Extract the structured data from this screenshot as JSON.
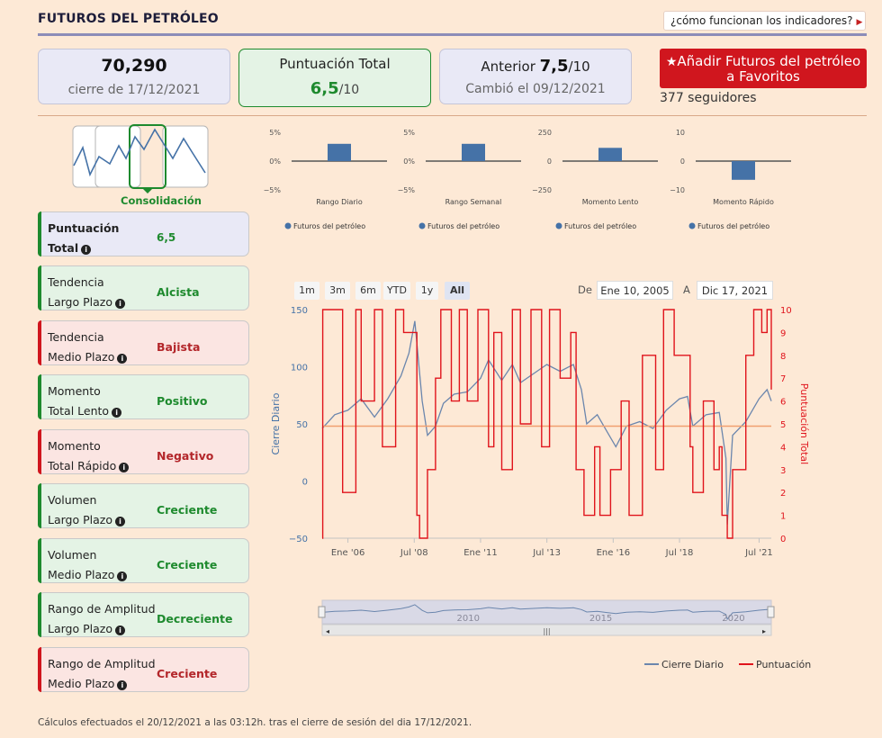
{
  "header": {
    "title": "FUTUROS DEL PETRÓLEO",
    "how_link": "¿cómo funcionan los indicadores?"
  },
  "summary": {
    "price": "70,290",
    "price_date": "cierre de 17/12/2021",
    "total_label": "Puntuación Total",
    "total_score": "6,5",
    "total_suffix": "/10",
    "prev_label": "Anterior ",
    "prev_score": "7,5",
    "prev_suffix": "/10",
    "prev_date": "Cambió el 09/12/2021"
  },
  "favorites": {
    "button_label": "Añadir Futuros del petróleo a Favoritos",
    "followers": "377 seguidores"
  },
  "phase": {
    "label": "Consolidación"
  },
  "panels": [
    {
      "line1": "Puntuación",
      "line2": "Total",
      "value": "6,5",
      "tone": "purple"
    },
    {
      "line1": "Tendencia",
      "line2": "Largo Plazo",
      "value": "Alcista",
      "tone": "green"
    },
    {
      "line1": "Tendencia",
      "line2": "Medio Plazo",
      "value": "Bajista",
      "tone": "red"
    },
    {
      "line1": "Momento",
      "line2": "Total Lento",
      "value": "Positivo",
      "tone": "green"
    },
    {
      "line1": "Momento",
      "line2": "Total Rápido",
      "value": "Negativo",
      "tone": "red"
    },
    {
      "line1": "Volumen",
      "line2": "Largo Plazo",
      "value": "Creciente",
      "tone": "green"
    },
    {
      "line1": "Volumen",
      "line2": "Medio Plazo",
      "value": "Creciente",
      "tone": "green"
    },
    {
      "line1": "Rango de Amplitud",
      "line2": "Largo Plazo",
      "value": "Decreciente",
      "tone": "green"
    },
    {
      "line1": "Rango de Amplitud",
      "line2": "Medio Plazo",
      "value": "Creciente",
      "tone": "red"
    }
  ],
  "range_selector": {
    "buttons": [
      "1m",
      "3m",
      "6m",
      "YTD",
      "1y",
      "All"
    ],
    "selected": "All",
    "from_label": "De",
    "from_value": "Ene 10, 2005",
    "to_label": "A",
    "to_value": "Dic 17, 2021"
  },
  "footnote": "Cálculos efectuados el 20/12/2021 a las 03:12h. tras el cierre de sesión del dia 17/12/2021.",
  "colors": {
    "green": "#1e8a2e",
    "red": "#d0161e",
    "bar_blue": "#4572a7",
    "price_line": "#6b86ad",
    "score_line": "#e0141c"
  },
  "chart_data": [
    {
      "type": "bar",
      "title": "",
      "categories": [
        "Rango Diario"
      ],
      "series": [
        {
          "name": "Futuros del petróleo",
          "values": [
            3
          ]
        }
      ],
      "ylim": [
        -5,
        5
      ],
      "yticks": [
        "5%",
        "0%",
        "−5%"
      ]
    },
    {
      "type": "bar",
      "title": "",
      "categories": [
        "Rango Semanal"
      ],
      "series": [
        {
          "name": "Futuros del petróleo",
          "values": [
            3
          ]
        }
      ],
      "ylim": [
        -5,
        5
      ],
      "yticks": [
        "5%",
        "0%",
        "−5%"
      ]
    },
    {
      "type": "bar",
      "title": "",
      "categories": [
        "Momento Lento"
      ],
      "series": [
        {
          "name": "Futuros del petróleo",
          "values": [
            115
          ]
        }
      ],
      "ylim": [
        -250,
        250
      ],
      "yticks": [
        "250",
        "0",
        "−250"
      ]
    },
    {
      "type": "bar",
      "title": "",
      "categories": [
        "Momento Rápido"
      ],
      "series": [
        {
          "name": "Futuros del petróleo",
          "values": [
            -6.5
          ]
        }
      ],
      "ylim": [
        -10,
        10
      ],
      "yticks": [
        "10",
        "0",
        "−10"
      ]
    },
    {
      "type": "line",
      "xlabel": "",
      "ylabel": "Cierre Diario",
      "y2label": "Puntuación Total",
      "ylim": [
        -50,
        150
      ],
      "y2lim": [
        0,
        10
      ],
      "yticks": [
        "150",
        "100",
        "50",
        "0",
        "−50"
      ],
      "y2ticks": [
        "10",
        "9",
        "8",
        "7",
        "6",
        "5",
        "4",
        "3",
        "2",
        "1",
        "0"
      ],
      "xticks": [
        "Ene '06",
        "Jul '08",
        "Ene '11",
        "Jul '13",
        "Ene '16",
        "Jul '18",
        "Jul '21"
      ],
      "xtick_years": [
        2006.0,
        2008.5,
        2011.0,
        2013.5,
        2016.0,
        2018.5,
        2021.5
      ],
      "xrange": [
        2005.03,
        2021.96
      ],
      "reference_line": 48,
      "series": [
        {
          "name": "Cierre Diario",
          "axis": "left",
          "x": [
            2005.03,
            2005.5,
            2006.0,
            2006.5,
            2007.0,
            2007.5,
            2008.0,
            2008.3,
            2008.52,
            2008.8,
            2009.0,
            2009.3,
            2009.6,
            2010.0,
            2010.5,
            2011.0,
            2011.3,
            2011.8,
            2012.2,
            2012.5,
            2013.0,
            2013.5,
            2014.0,
            2014.5,
            2014.8,
            2015.0,
            2015.4,
            2015.8,
            2016.1,
            2016.5,
            2017.0,
            2017.5,
            2018.0,
            2018.5,
            2018.8,
            2019.0,
            2019.5,
            2020.0,
            2020.25,
            2020.3,
            2020.5,
            2021.0,
            2021.5,
            2021.8,
            2021.96
          ],
          "y": [
            46,
            58,
            62,
            72,
            56,
            72,
            92,
            112,
            140,
            70,
            40,
            48,
            68,
            76,
            78,
            90,
            106,
            88,
            102,
            86,
            94,
            102,
            96,
            102,
            80,
            50,
            58,
            42,
            30,
            48,
            52,
            46,
            62,
            72,
            74,
            48,
            58,
            60,
            20,
            -38,
            40,
            52,
            72,
            80,
            70
          ]
        },
        {
          "name": "Puntuación",
          "axis": "right",
          "x": [
            2005.03,
            2005.05,
            2005.6,
            2005.8,
            2006.3,
            2006.5,
            2007.0,
            2007.3,
            2007.8,
            2008.1,
            2008.6,
            2008.7,
            2009.0,
            2009.3,
            2009.5,
            2009.9,
            2010.2,
            2010.5,
            2010.9,
            2011.3,
            2011.5,
            2011.8,
            2012.2,
            2012.5,
            2012.9,
            2013.3,
            2013.6,
            2014.0,
            2014.4,
            2014.6,
            2014.9,
            2015.3,
            2015.5,
            2015.9,
            2016.3,
            2016.6,
            2017.1,
            2017.6,
            2017.9,
            2018.3,
            2018.9,
            2019.0,
            2019.4,
            2019.8,
            2020.0,
            2020.1,
            2020.3,
            2020.5,
            2021.0,
            2021.3,
            2021.6,
            2021.8,
            2021.96
          ],
          "y": [
            0,
            10,
            10,
            2,
            10,
            6,
            10,
            4,
            10,
            9,
            1,
            0,
            3,
            7,
            10,
            6,
            10,
            6,
            10,
            4,
            9,
            3,
            10,
            5,
            10,
            4,
            10,
            7,
            9,
            3,
            1,
            4,
            1,
            3,
            6,
            1,
            8,
            3,
            10,
            8,
            4,
            2,
            6,
            3,
            4,
            1,
            0,
            3,
            8,
            10,
            9,
            10,
            6.5
          ]
        }
      ],
      "navigator_labels": [
        "2010",
        "2015",
        "2020"
      ],
      "legend": [
        "Cierre Diario",
        "Puntuación"
      ]
    }
  ]
}
